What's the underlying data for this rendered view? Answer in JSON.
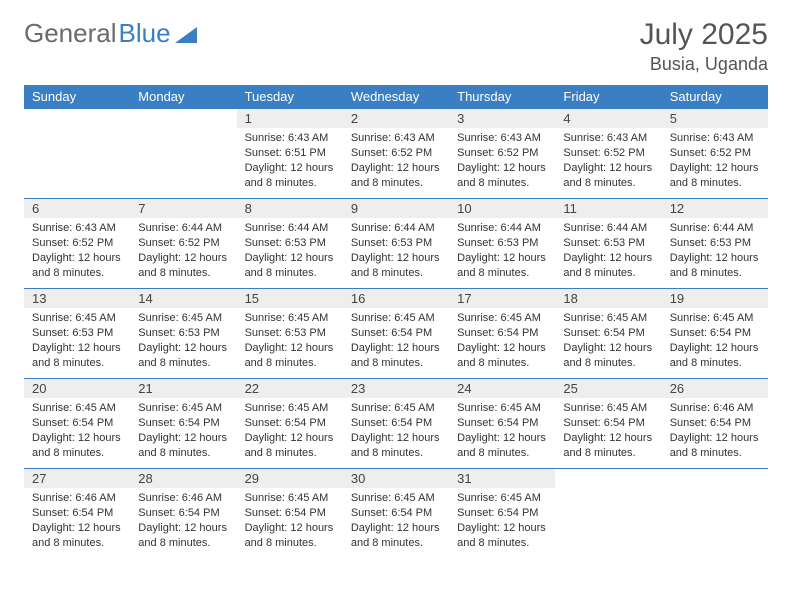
{
  "logo": {
    "text1": "General",
    "text2": "Blue"
  },
  "title": "July 2025",
  "location": "Busia, Uganda",
  "colors": {
    "header_bg": "#3a7fc4",
    "header_text": "#ffffff",
    "daynum_bg": "#eeeeee",
    "border": "#3a7fc4",
    "title_color": "#555555",
    "logo_gray": "#6b6b6b",
    "logo_blue": "#3a7fc4"
  },
  "day_labels": [
    "Sunday",
    "Monday",
    "Tuesday",
    "Wednesday",
    "Thursday",
    "Friday",
    "Saturday"
  ],
  "weeks": [
    [
      {
        "num": "",
        "lines": []
      },
      {
        "num": "",
        "lines": []
      },
      {
        "num": "1",
        "lines": [
          "Sunrise: 6:43 AM",
          "Sunset: 6:51 PM",
          "Daylight: 12 hours and 8 minutes."
        ]
      },
      {
        "num": "2",
        "lines": [
          "Sunrise: 6:43 AM",
          "Sunset: 6:52 PM",
          "Daylight: 12 hours and 8 minutes."
        ]
      },
      {
        "num": "3",
        "lines": [
          "Sunrise: 6:43 AM",
          "Sunset: 6:52 PM",
          "Daylight: 12 hours and 8 minutes."
        ]
      },
      {
        "num": "4",
        "lines": [
          "Sunrise: 6:43 AM",
          "Sunset: 6:52 PM",
          "Daylight: 12 hours and 8 minutes."
        ]
      },
      {
        "num": "5",
        "lines": [
          "Sunrise: 6:43 AM",
          "Sunset: 6:52 PM",
          "Daylight: 12 hours and 8 minutes."
        ]
      }
    ],
    [
      {
        "num": "6",
        "lines": [
          "Sunrise: 6:43 AM",
          "Sunset: 6:52 PM",
          "Daylight: 12 hours and 8 minutes."
        ]
      },
      {
        "num": "7",
        "lines": [
          "Sunrise: 6:44 AM",
          "Sunset: 6:52 PM",
          "Daylight: 12 hours and 8 minutes."
        ]
      },
      {
        "num": "8",
        "lines": [
          "Sunrise: 6:44 AM",
          "Sunset: 6:53 PM",
          "Daylight: 12 hours and 8 minutes."
        ]
      },
      {
        "num": "9",
        "lines": [
          "Sunrise: 6:44 AM",
          "Sunset: 6:53 PM",
          "Daylight: 12 hours and 8 minutes."
        ]
      },
      {
        "num": "10",
        "lines": [
          "Sunrise: 6:44 AM",
          "Sunset: 6:53 PM",
          "Daylight: 12 hours and 8 minutes."
        ]
      },
      {
        "num": "11",
        "lines": [
          "Sunrise: 6:44 AM",
          "Sunset: 6:53 PM",
          "Daylight: 12 hours and 8 minutes."
        ]
      },
      {
        "num": "12",
        "lines": [
          "Sunrise: 6:44 AM",
          "Sunset: 6:53 PM",
          "Daylight: 12 hours and 8 minutes."
        ]
      }
    ],
    [
      {
        "num": "13",
        "lines": [
          "Sunrise: 6:45 AM",
          "Sunset: 6:53 PM",
          "Daylight: 12 hours and 8 minutes."
        ]
      },
      {
        "num": "14",
        "lines": [
          "Sunrise: 6:45 AM",
          "Sunset: 6:53 PM",
          "Daylight: 12 hours and 8 minutes."
        ]
      },
      {
        "num": "15",
        "lines": [
          "Sunrise: 6:45 AM",
          "Sunset: 6:53 PM",
          "Daylight: 12 hours and 8 minutes."
        ]
      },
      {
        "num": "16",
        "lines": [
          "Sunrise: 6:45 AM",
          "Sunset: 6:54 PM",
          "Daylight: 12 hours and 8 minutes."
        ]
      },
      {
        "num": "17",
        "lines": [
          "Sunrise: 6:45 AM",
          "Sunset: 6:54 PM",
          "Daylight: 12 hours and 8 minutes."
        ]
      },
      {
        "num": "18",
        "lines": [
          "Sunrise: 6:45 AM",
          "Sunset: 6:54 PM",
          "Daylight: 12 hours and 8 minutes."
        ]
      },
      {
        "num": "19",
        "lines": [
          "Sunrise: 6:45 AM",
          "Sunset: 6:54 PM",
          "Daylight: 12 hours and 8 minutes."
        ]
      }
    ],
    [
      {
        "num": "20",
        "lines": [
          "Sunrise: 6:45 AM",
          "Sunset: 6:54 PM",
          "Daylight: 12 hours and 8 minutes."
        ]
      },
      {
        "num": "21",
        "lines": [
          "Sunrise: 6:45 AM",
          "Sunset: 6:54 PM",
          "Daylight: 12 hours and 8 minutes."
        ]
      },
      {
        "num": "22",
        "lines": [
          "Sunrise: 6:45 AM",
          "Sunset: 6:54 PM",
          "Daylight: 12 hours and 8 minutes."
        ]
      },
      {
        "num": "23",
        "lines": [
          "Sunrise: 6:45 AM",
          "Sunset: 6:54 PM",
          "Daylight: 12 hours and 8 minutes."
        ]
      },
      {
        "num": "24",
        "lines": [
          "Sunrise: 6:45 AM",
          "Sunset: 6:54 PM",
          "Daylight: 12 hours and 8 minutes."
        ]
      },
      {
        "num": "25",
        "lines": [
          "Sunrise: 6:45 AM",
          "Sunset: 6:54 PM",
          "Daylight: 12 hours and 8 minutes."
        ]
      },
      {
        "num": "26",
        "lines": [
          "Sunrise: 6:46 AM",
          "Sunset: 6:54 PM",
          "Daylight: 12 hours and 8 minutes."
        ]
      }
    ],
    [
      {
        "num": "27",
        "lines": [
          "Sunrise: 6:46 AM",
          "Sunset: 6:54 PM",
          "Daylight: 12 hours and 8 minutes."
        ]
      },
      {
        "num": "28",
        "lines": [
          "Sunrise: 6:46 AM",
          "Sunset: 6:54 PM",
          "Daylight: 12 hours and 8 minutes."
        ]
      },
      {
        "num": "29",
        "lines": [
          "Sunrise: 6:45 AM",
          "Sunset: 6:54 PM",
          "Daylight: 12 hours and 8 minutes."
        ]
      },
      {
        "num": "30",
        "lines": [
          "Sunrise: 6:45 AM",
          "Sunset: 6:54 PM",
          "Daylight: 12 hours and 8 minutes."
        ]
      },
      {
        "num": "31",
        "lines": [
          "Sunrise: 6:45 AM",
          "Sunset: 6:54 PM",
          "Daylight: 12 hours and 8 minutes."
        ]
      },
      {
        "num": "",
        "lines": []
      },
      {
        "num": "",
        "lines": []
      }
    ]
  ]
}
